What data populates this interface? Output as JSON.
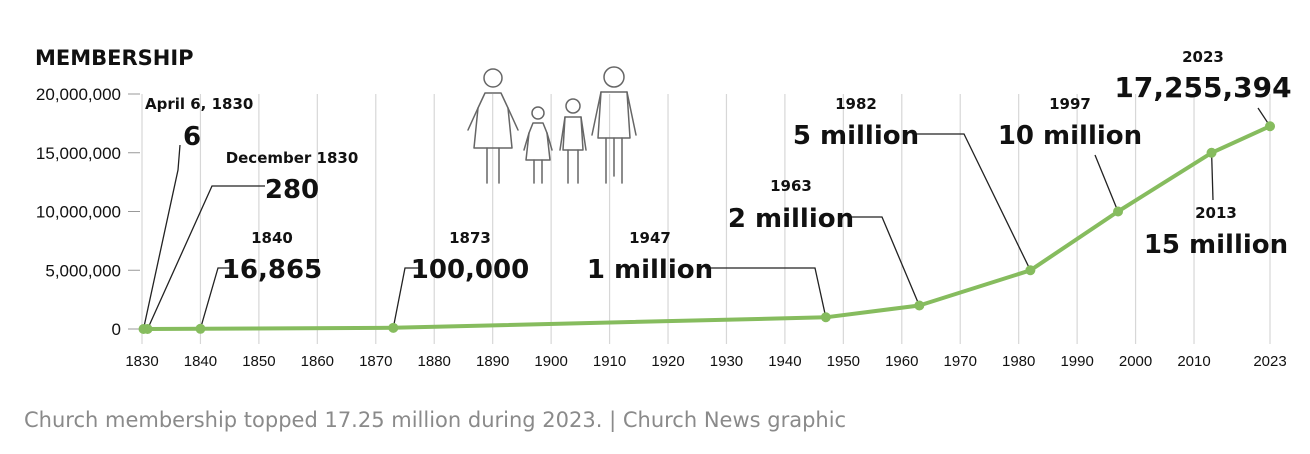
{
  "caption": "Church membership topped 17.25 million during 2023. | Church News graphic",
  "chart_data": {
    "type": "line",
    "title": "MEMBERSHIP",
    "xlabel": "",
    "ylabel": "",
    "ylim": [
      0,
      20000000
    ],
    "xlim": [
      1830,
      2023
    ],
    "grid": "vertical",
    "line_color": "#86bc5e",
    "y_ticks": [
      {
        "value": 0,
        "label": "0"
      },
      {
        "value": 5000000,
        "label": "5,000,000"
      },
      {
        "value": 10000000,
        "label": "10,000,000"
      },
      {
        "value": 15000000,
        "label": "15,000,000"
      },
      {
        "value": 20000000,
        "label": "20,000,000"
      }
    ],
    "x_ticks": [
      "1830",
      "1840",
      "1850",
      "1860",
      "1870",
      "1880",
      "1890",
      "1900",
      "1910",
      "1920",
      "1930",
      "1940",
      "1950",
      "1960",
      "1970",
      "1980",
      "1990",
      "2000",
      "2010",
      "2023"
    ],
    "points": [
      {
        "x": 1830.26,
        "y": 6,
        "date": "April 6, 1830",
        "value": "6"
      },
      {
        "x": 1830.95,
        "y": 280,
        "date": "December 1830",
        "value": "280"
      },
      {
        "x": 1840,
        "y": 16865,
        "date": "1840",
        "value": "16,865"
      },
      {
        "x": 1873,
        "y": 100000,
        "date": "1873",
        "value": "100,000"
      },
      {
        "x": 1947,
        "y": 1000000,
        "date": "1947",
        "value": "1 million"
      },
      {
        "x": 1963,
        "y": 2000000,
        "date": "1963",
        "value": "2 million"
      },
      {
        "x": 1982,
        "y": 5000000,
        "date": "1982",
        "value": "5 million"
      },
      {
        "x": 1997,
        "y": 10000000,
        "date": "1997",
        "value": "10 million"
      },
      {
        "x": 2013,
        "y": 15000000,
        "date": "2013",
        "value": "15 million"
      },
      {
        "x": 2023,
        "y": 17255394,
        "date": "2023",
        "value": "17,255,394"
      }
    ]
  }
}
